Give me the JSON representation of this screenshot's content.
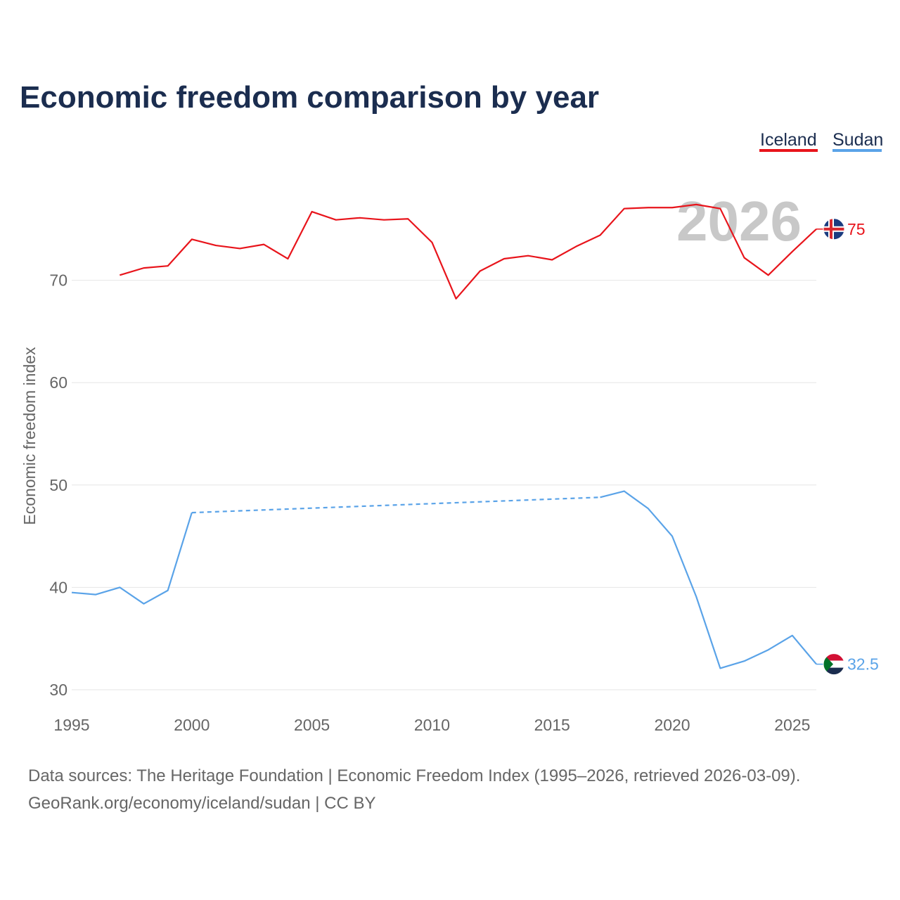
{
  "title": "Economic freedom comparison by year",
  "current_year": "2026",
  "colors": {
    "iceland": "#e8141b",
    "sudan": "#5aa3e8",
    "title": "#1b2d4f"
  },
  "source_line1": "Data sources: The Heritage Foundation | Economic Freedom Index (1995–2026, retrieved 2026-03-09).",
  "source_line2": "GeoRank.org/economy/iceland/sudan | CC BY",
  "chart_data": {
    "type": "line",
    "title": "Economic freedom comparison by year",
    "xlabel": "",
    "ylabel": "Economic freedom index",
    "xlim": [
      1995,
      2026
    ],
    "ylim": [
      30,
      80
    ],
    "x_ticks": [
      1995,
      2000,
      2005,
      2010,
      2015,
      2020,
      2025
    ],
    "y_ticks": [
      30,
      40,
      50,
      60,
      70
    ],
    "grid": true,
    "legend_position": "top-right",
    "series": [
      {
        "name": "Iceland",
        "color": "#e8141b",
        "end_label": "75",
        "flag_icon": "iceland-flag-icon",
        "points": [
          {
            "x": 1997,
            "y": 70.5
          },
          {
            "x": 1998,
            "y": 71.2
          },
          {
            "x": 1999,
            "y": 71.4
          },
          {
            "x": 2000,
            "y": 74.0
          },
          {
            "x": 2001,
            "y": 73.4
          },
          {
            "x": 2002,
            "y": 73.1
          },
          {
            "x": 2003,
            "y": 73.5
          },
          {
            "x": 2004,
            "y": 72.1
          },
          {
            "x": 2005,
            "y": 76.7
          },
          {
            "x": 2006,
            "y": 75.9
          },
          {
            "x": 2007,
            "y": 76.1
          },
          {
            "x": 2008,
            "y": 75.9
          },
          {
            "x": 2009,
            "y": 76.0
          },
          {
            "x": 2010,
            "y": 73.7
          },
          {
            "x": 2011,
            "y": 68.2
          },
          {
            "x": 2012,
            "y": 70.9
          },
          {
            "x": 2013,
            "y": 72.1
          },
          {
            "x": 2014,
            "y": 72.4
          },
          {
            "x": 2015,
            "y": 72.0
          },
          {
            "x": 2016,
            "y": 73.3
          },
          {
            "x": 2017,
            "y": 74.4
          },
          {
            "x": 2018,
            "y": 77.0
          },
          {
            "x": 2019,
            "y": 77.1
          },
          {
            "x": 2020,
            "y": 77.1
          },
          {
            "x": 2021,
            "y": 77.4
          },
          {
            "x": 2022,
            "y": 77.0
          },
          {
            "x": 2023,
            "y": 72.2
          },
          {
            "x": 2024,
            "y": 70.5
          },
          {
            "x": 2025,
            "y": 72.8
          },
          {
            "x": 2026,
            "y": 75.0
          }
        ],
        "gaps": []
      },
      {
        "name": "Sudan",
        "color": "#5aa3e8",
        "end_label": "32.5",
        "flag_icon": "sudan-flag-icon",
        "points": [
          {
            "x": 1995,
            "y": 39.5
          },
          {
            "x": 1996,
            "y": 39.3
          },
          {
            "x": 1997,
            "y": 40.0
          },
          {
            "x": 1998,
            "y": 38.4
          },
          {
            "x": 1999,
            "y": 39.7
          },
          {
            "x": 2000,
            "y": 47.3
          },
          {
            "x": 2017,
            "y": 48.8
          },
          {
            "x": 2018,
            "y": 49.4
          },
          {
            "x": 2019,
            "y": 47.7
          },
          {
            "x": 2020,
            "y": 45.0
          },
          {
            "x": 2021,
            "y": 39.1
          },
          {
            "x": 2022,
            "y": 32.1
          },
          {
            "x": 2023,
            "y": 32.8
          },
          {
            "x": 2024,
            "y": 33.9
          },
          {
            "x": 2025,
            "y": 35.3
          },
          {
            "x": 2026,
            "y": 32.5
          }
        ],
        "gaps": [
          [
            2000,
            2017
          ]
        ]
      }
    ]
  }
}
